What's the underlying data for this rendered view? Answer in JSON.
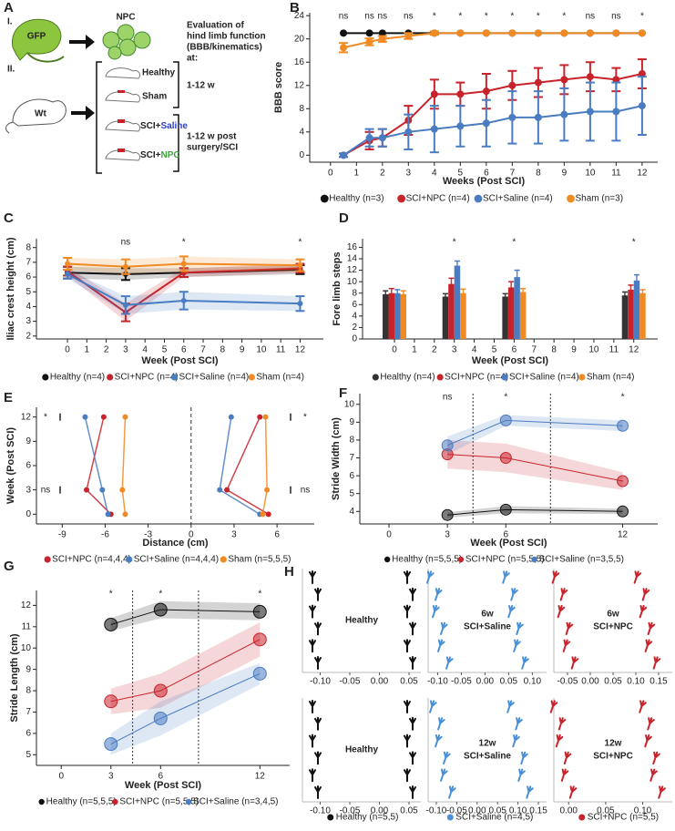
{
  "schematic": {
    "panel": "A",
    "stages": [
      "I.",
      "II."
    ],
    "donor": "GFP",
    "cells": "NPC",
    "host": "Wt",
    "evaluation": [
      "Evaluation of",
      "hind limb function",
      "(BBB/kinematics)",
      "at:"
    ],
    "groups": [
      [
        "Healthy"
      ],
      [
        "Sham"
      ],
      [
        "SCI+",
        "Saline"
      ],
      [
        "SCI+",
        "NPC"
      ]
    ],
    "timing": [
      [
        "1-12 w"
      ],
      [
        "1-12 w post",
        "surgery/SCI"
      ]
    ]
  },
  "chart_data": [
    {
      "panel": "B",
      "type": "line",
      "x_label": "Weeks (Post SCI)",
      "y_label": "BBB score",
      "x": [
        0.5,
        1.5,
        2,
        3,
        4,
        5,
        6,
        7,
        8,
        9,
        10,
        11,
        12
      ],
      "xlim": [
        -0.8,
        12.6
      ],
      "ylim": [
        -1.2,
        24.5
      ],
      "xticks": [
        0,
        1,
        2,
        3,
        4,
        5,
        6,
        7,
        8,
        9,
        10,
        11,
        12
      ],
      "yticks": [
        0,
        4,
        8,
        12,
        16,
        20,
        24
      ],
      "grid": false,
      "error_bars": true,
      "bands": false,
      "annotations": [
        {
          "x": 0.5,
          "text": "ns"
        },
        {
          "x": 1.5,
          "text": "ns"
        },
        {
          "x": 2,
          "text": "ns"
        },
        {
          "x": 3,
          "text": "ns"
        },
        {
          "x": 4,
          "text": "*"
        },
        {
          "x": 5,
          "text": "*"
        },
        {
          "x": 6,
          "text": "*"
        },
        {
          "x": 7,
          "text": "*"
        },
        {
          "x": 8,
          "text": "*"
        },
        {
          "x": 9,
          "text": "*"
        },
        {
          "x": 10,
          "text": "ns"
        },
        {
          "x": 11,
          "text": "ns"
        },
        {
          "x": 12,
          "text": "*"
        }
      ],
      "series": [
        {
          "name": "Healthy (n=3)",
          "color": "#111111",
          "values": [
            21,
            21,
            21,
            21,
            21,
            21,
            21,
            21,
            21,
            21,
            21,
            21,
            21
          ],
          "errors": [
            0,
            0,
            0,
            0,
            0,
            0,
            0,
            0,
            0,
            0,
            0,
            0,
            0
          ]
        },
        {
          "name": "SCI+NPC (n=4)",
          "color": "#c8232b",
          "values": [
            0,
            2.5,
            3,
            6,
            10.5,
            10.5,
            11,
            12,
            12.5,
            13,
            13.5,
            13,
            14
          ],
          "errors": [
            0.3,
            1.5,
            1.5,
            2.5,
            2.5,
            2,
            3,
            2.5,
            2.5,
            2.5,
            2.5,
            2,
            2.5
          ]
        },
        {
          "name": "SCI+Saline (n=4)",
          "color": "#4a7cc2",
          "values": [
            0,
            3,
            3,
            4,
            4.5,
            5,
            5.5,
            6.5,
            6.5,
            7,
            7.5,
            7.5,
            8.5
          ],
          "errors": [
            0.3,
            1.5,
            1.5,
            3,
            4,
            3.5,
            4,
            4.5,
            4.5,
            4.5,
            5,
            5,
            5
          ]
        },
        {
          "name": "Sham (n=3)",
          "color": "#f08a24",
          "values": [
            18.5,
            19.5,
            20,
            20.5,
            21,
            21,
            21,
            21,
            21,
            21,
            21,
            21,
            21
          ],
          "errors": [
            0.8,
            0.6,
            0.5,
            0.5,
            0.3,
            0,
            0,
            0,
            0,
            0,
            0,
            0,
            0
          ]
        }
      ]
    },
    {
      "panel": "C",
      "type": "line",
      "x_label": "Week (Post SCI)",
      "y_label": "Iliac crest height (cm)",
      "x": [
        0,
        3,
        6,
        12
      ],
      "xlim": [
        -1.6,
        13.2
      ],
      "ylim": [
        1.8,
        8.6
      ],
      "xticks": [
        0,
        1,
        2,
        3,
        4,
        5,
        6,
        7,
        8,
        9,
        10,
        11,
        12
      ],
      "yticks": [
        2,
        3,
        4,
        5,
        6,
        7,
        8
      ],
      "grid": false,
      "error_bars": true,
      "bands": true,
      "annotations": [
        {
          "x": 3,
          "text": "ns"
        },
        {
          "x": 6,
          "text": "*"
        },
        {
          "x": 12,
          "text": "*"
        }
      ],
      "series": [
        {
          "name": "Healthy (n=4)",
          "color": "#111111",
          "values": [
            6.3,
            6.2,
            6.3,
            6.5
          ],
          "errors": [
            0.4,
            0.4,
            0.3,
            0.3
          ]
        },
        {
          "name": "SCI+NPC (n=4)",
          "color": "#c8232b",
          "values": [
            6.4,
            3.6,
            6.3,
            6.6
          ],
          "errors": [
            0.3,
            0.6,
            0.3,
            0.3
          ]
        },
        {
          "name": "SCI+Saline (n=4)",
          "color": "#4a7cc2",
          "values": [
            6.2,
            4.1,
            4.4,
            4.2
          ],
          "errors": [
            0.3,
            0.6,
            0.6,
            0.5
          ]
        },
        {
          "name": "Sham (n=4)",
          "color": "#f08a24",
          "values": [
            6.9,
            6.7,
            6.9,
            6.8
          ],
          "errors": [
            0.4,
            0.5,
            0.5,
            0.4
          ]
        }
      ]
    },
    {
      "panel": "D",
      "type": "bar",
      "x_label": "Week (Post SCI)",
      "y_label": "Fore limb steps",
      "x": [
        0,
        3,
        6,
        12
      ],
      "xlim": [
        -1.6,
        13.2
      ],
      "ylim": [
        0,
        17.5
      ],
      "xticks": [
        0,
        1,
        2,
        3,
        4,
        5,
        6,
        7,
        8,
        9,
        10,
        11,
        12
      ],
      "yticks": [
        0,
        2,
        4,
        6,
        8,
        10,
        12,
        14,
        16
      ],
      "grid": false,
      "error_bars": true,
      "bands": false,
      "annotations": [
        {
          "x": 3,
          "text": "*"
        },
        {
          "x": 6,
          "text": "*"
        },
        {
          "x": 12,
          "text": "*"
        }
      ],
      "series": [
        {
          "name": "Healthy (n=4)",
          "color": "#333333",
          "values": [
            7.8,
            7.4,
            7.4,
            7.6
          ],
          "errors": [
            0.6,
            0.5,
            0.5,
            0.6
          ]
        },
        {
          "name": "SCI+NPC (n=4)",
          "color": "#c8232b",
          "values": [
            8.0,
            9.6,
            9.0,
            8.6
          ],
          "errors": [
            0.8,
            1,
            1,
            0.8
          ]
        },
        {
          "name": "SCI+Saline (n=4)",
          "color": "#4a7cc2",
          "values": [
            8.0,
            12.8,
            10.8,
            10.2
          ],
          "errors": [
            0.6,
            0.8,
            1.2,
            1
          ]
        },
        {
          "name": "Sham (n=4)",
          "color": "#f08a24",
          "values": [
            7.8,
            8.0,
            8.2,
            8.0
          ],
          "errors": [
            0.6,
            0.7,
            0.6,
            0.6
          ]
        }
      ]
    },
    {
      "panel": "E",
      "type": "line",
      "orientation": "horizontal",
      "x_label": "Distance (cm)",
      "y_label": "Week (Post SCI)",
      "y": [
        0,
        3,
        12
      ],
      "xlim": [
        -10.8,
        8.6
      ],
      "ylim": [
        -1.2,
        13.2
      ],
      "xticks": [
        -9,
        -6,
        -3,
        0,
        3,
        6
      ],
      "yticks": [
        0,
        3,
        6,
        9,
        12
      ],
      "grid": false,
      "annotations_left": [
        {
          "y": 12,
          "text": "*"
        },
        {
          "y": 3,
          "text": "ns"
        }
      ],
      "annotations_right": [
        {
          "y": 12,
          "text": "*"
        },
        {
          "y": 3,
          "text": "ns"
        }
      ],
      "series": [
        {
          "name": "SCI+NPC (n=4,4,4)",
          "color": "#c8232b",
          "left": [
            -5.6,
            -7.3,
            -6.1
          ],
          "right": [
            5.4,
            2.5,
            4.8
          ]
        },
        {
          "name": "SCI+Saline (n=4,4,4)",
          "color": "#4a7cc2",
          "left": [
            -5.8,
            -6.2,
            -7.4
          ],
          "right": [
            4.8,
            2.0,
            2.8
          ]
        },
        {
          "name": "Sham (n=5,5,5)",
          "color": "#f08a24",
          "left": [
            -4.6,
            -4.8,
            -4.6
          ],
          "right": [
            5.0,
            5.3,
            5.2
          ]
        }
      ]
    },
    {
      "panel": "F",
      "type": "line",
      "x_label": "Week (Post SCI)",
      "y_label": "Stride Width (cm)",
      "x": [
        3,
        6,
        12
      ],
      "xlim": [
        -1.5,
        13.8
      ],
      "ylim": [
        3.3,
        10.6
      ],
      "xticks": [
        0,
        3,
        6,
        12
      ],
      "yticks": [
        4,
        5,
        6,
        7,
        8,
        9,
        10
      ],
      "grid": false,
      "error_bars": false,
      "bands": true,
      "annotations": [
        {
          "x": 3,
          "text": "ns"
        },
        {
          "x": 6,
          "text": "*"
        },
        {
          "x": 12,
          "text": "*"
        }
      ],
      "series": [
        {
          "name": "Healthy (n=5,5,5)",
          "color": "#111111",
          "values": [
            3.8,
            4.1,
            4.0
          ],
          "errors": [
            0.15,
            0.2,
            0.15
          ]
        },
        {
          "name": "SCI+NPC (n=5,5,5)",
          "color": "#c8232b",
          "values": [
            7.2,
            7.0,
            5.7
          ],
          "errors": [
            0.8,
            0.8,
            0.5
          ]
        },
        {
          "name": "SCI+Saline (n=3,5,5)",
          "color": "#4a7cc2",
          "values": [
            7.7,
            9.1,
            8.8
          ],
          "errors": [
            0.5,
            0.3,
            0.3
          ]
        }
      ]
    },
    {
      "panel": "G",
      "type": "line",
      "x_label": "Week (Post SCI)",
      "y_label": "Stride Length (cm)",
      "x": [
        3,
        6,
        12
      ],
      "xlim": [
        -1.5,
        13.8
      ],
      "ylim": [
        4.5,
        12.7
      ],
      "xticks": [
        0,
        3,
        6,
        12
      ],
      "yticks": [
        5,
        6,
        7,
        8,
        9,
        10,
        11,
        12
      ],
      "grid": false,
      "error_bars": false,
      "bands": true,
      "annotations": [
        {
          "x": 3,
          "text": "*"
        },
        {
          "x": 6,
          "text": "*"
        },
        {
          "x": 12,
          "text": "*"
        }
      ],
      "series": [
        {
          "name": "Healthy (n=5,5,5)",
          "color": "#111111",
          "values": [
            11.1,
            11.8,
            11.7
          ],
          "errors": [
            0.3,
            0.4,
            0.4
          ]
        },
        {
          "name": "SCI+NPC (n=5,5,5)",
          "color": "#c8232b",
          "values": [
            7.5,
            8.0,
            10.4
          ],
          "errors": [
            0.6,
            0.8,
            0.8
          ]
        },
        {
          "name": "SCI+Saline (n=3,4,5)",
          "color": "#4a7cc2",
          "values": [
            5.5,
            6.7,
            8.8
          ],
          "errors": [
            0.5,
            0.8,
            0.5
          ]
        }
      ]
    }
  ],
  "footprints": {
    "panel": "H",
    "legend": [
      "Healthy (n=5,5)",
      "SCI+Saline (n=4,5)",
      "SCI+NPC (n=5,5)"
    ],
    "panels": [
      {
        "title": [
          "Healthy"
        ],
        "color": "#111111",
        "xlim": [
          -0.13,
          0.07
        ],
        "xticks": [
          {
            "value": -0.1,
            "label": "-0.10"
          },
          {
            "value": -0.05,
            "label": "-0.05"
          },
          {
            "value": 0,
            "label": "0.00"
          },
          {
            "value": 0.05,
            "label": "0.05"
          }
        ],
        "tracks": [
          -0.11,
          0.05
        ]
      },
      {
        "title": [
          "6w",
          "SCI+Saline"
        ],
        "color": "#4a90d8",
        "xlim": [
          -0.12,
          0.13
        ],
        "xticks": [
          {
            "value": -0.1,
            "label": "-0.10"
          },
          {
            "value": -0.05,
            "label": "-0.05"
          },
          {
            "value": 0,
            "label": "0.00"
          },
          {
            "value": 0.05,
            "label": "0.05"
          },
          {
            "value": 0.1,
            "label": "0.10"
          }
        ],
        "tracks": [
          -0.1,
          0.06
        ]
      },
      {
        "title": [
          "6w",
          "SCI+NPC"
        ],
        "color": "#c8232b",
        "xlim": [
          -0.08,
          0.18
        ],
        "xticks": [
          {
            "value": -0.05,
            "label": "-0.05"
          },
          {
            "value": 0,
            "label": "0.00"
          },
          {
            "value": 0.05,
            "label": "0.05"
          },
          {
            "value": 0.1,
            "label": "0.10"
          },
          {
            "value": 0.15,
            "label": "0.15"
          }
        ],
        "tracks": [
          -0.06,
          0.12
        ]
      },
      {
        "title": [
          "Healthy"
        ],
        "color": "#111111",
        "xlim": [
          -0.13,
          0.07
        ],
        "xticks": [
          {
            "value": -0.1,
            "label": "-0.10"
          },
          {
            "value": -0.05,
            "label": "-0.05"
          },
          {
            "value": 0,
            "label": "0.00"
          },
          {
            "value": 0.05,
            "label": "0.05"
          }
        ],
        "tracks": [
          -0.11,
          0.05
        ]
      },
      {
        "title": [
          "12w",
          "SCI+Saline"
        ],
        "color": "#4a90d8",
        "xlim": [
          -0.12,
          0.17
        ],
        "xticks": [
          {
            "value": -0.1,
            "label": "-0.10"
          },
          {
            "value": -0.05,
            "label": "-0.05"
          },
          {
            "value": 0,
            "label": "0.00"
          },
          {
            "value": 0.05,
            "label": "0.05"
          },
          {
            "value": 0.1,
            "label": "0.10"
          },
          {
            "value": 0.15,
            "label": "0.15"
          }
        ],
        "tracks": [
          -0.09,
          0.1
        ]
      },
      {
        "title": [
          "12w",
          "SCI+NPC"
        ],
        "color": "#c8232b",
        "xlim": [
          -0.02,
          0.14
        ],
        "xticks": [
          {
            "value": 0,
            "label": "0.00"
          },
          {
            "value": 0.05,
            "label": "0.05"
          },
          {
            "value": 0.1,
            "label": "0.10"
          }
        ],
        "tracks": [
          -0.01,
          0.11
        ]
      }
    ]
  }
}
